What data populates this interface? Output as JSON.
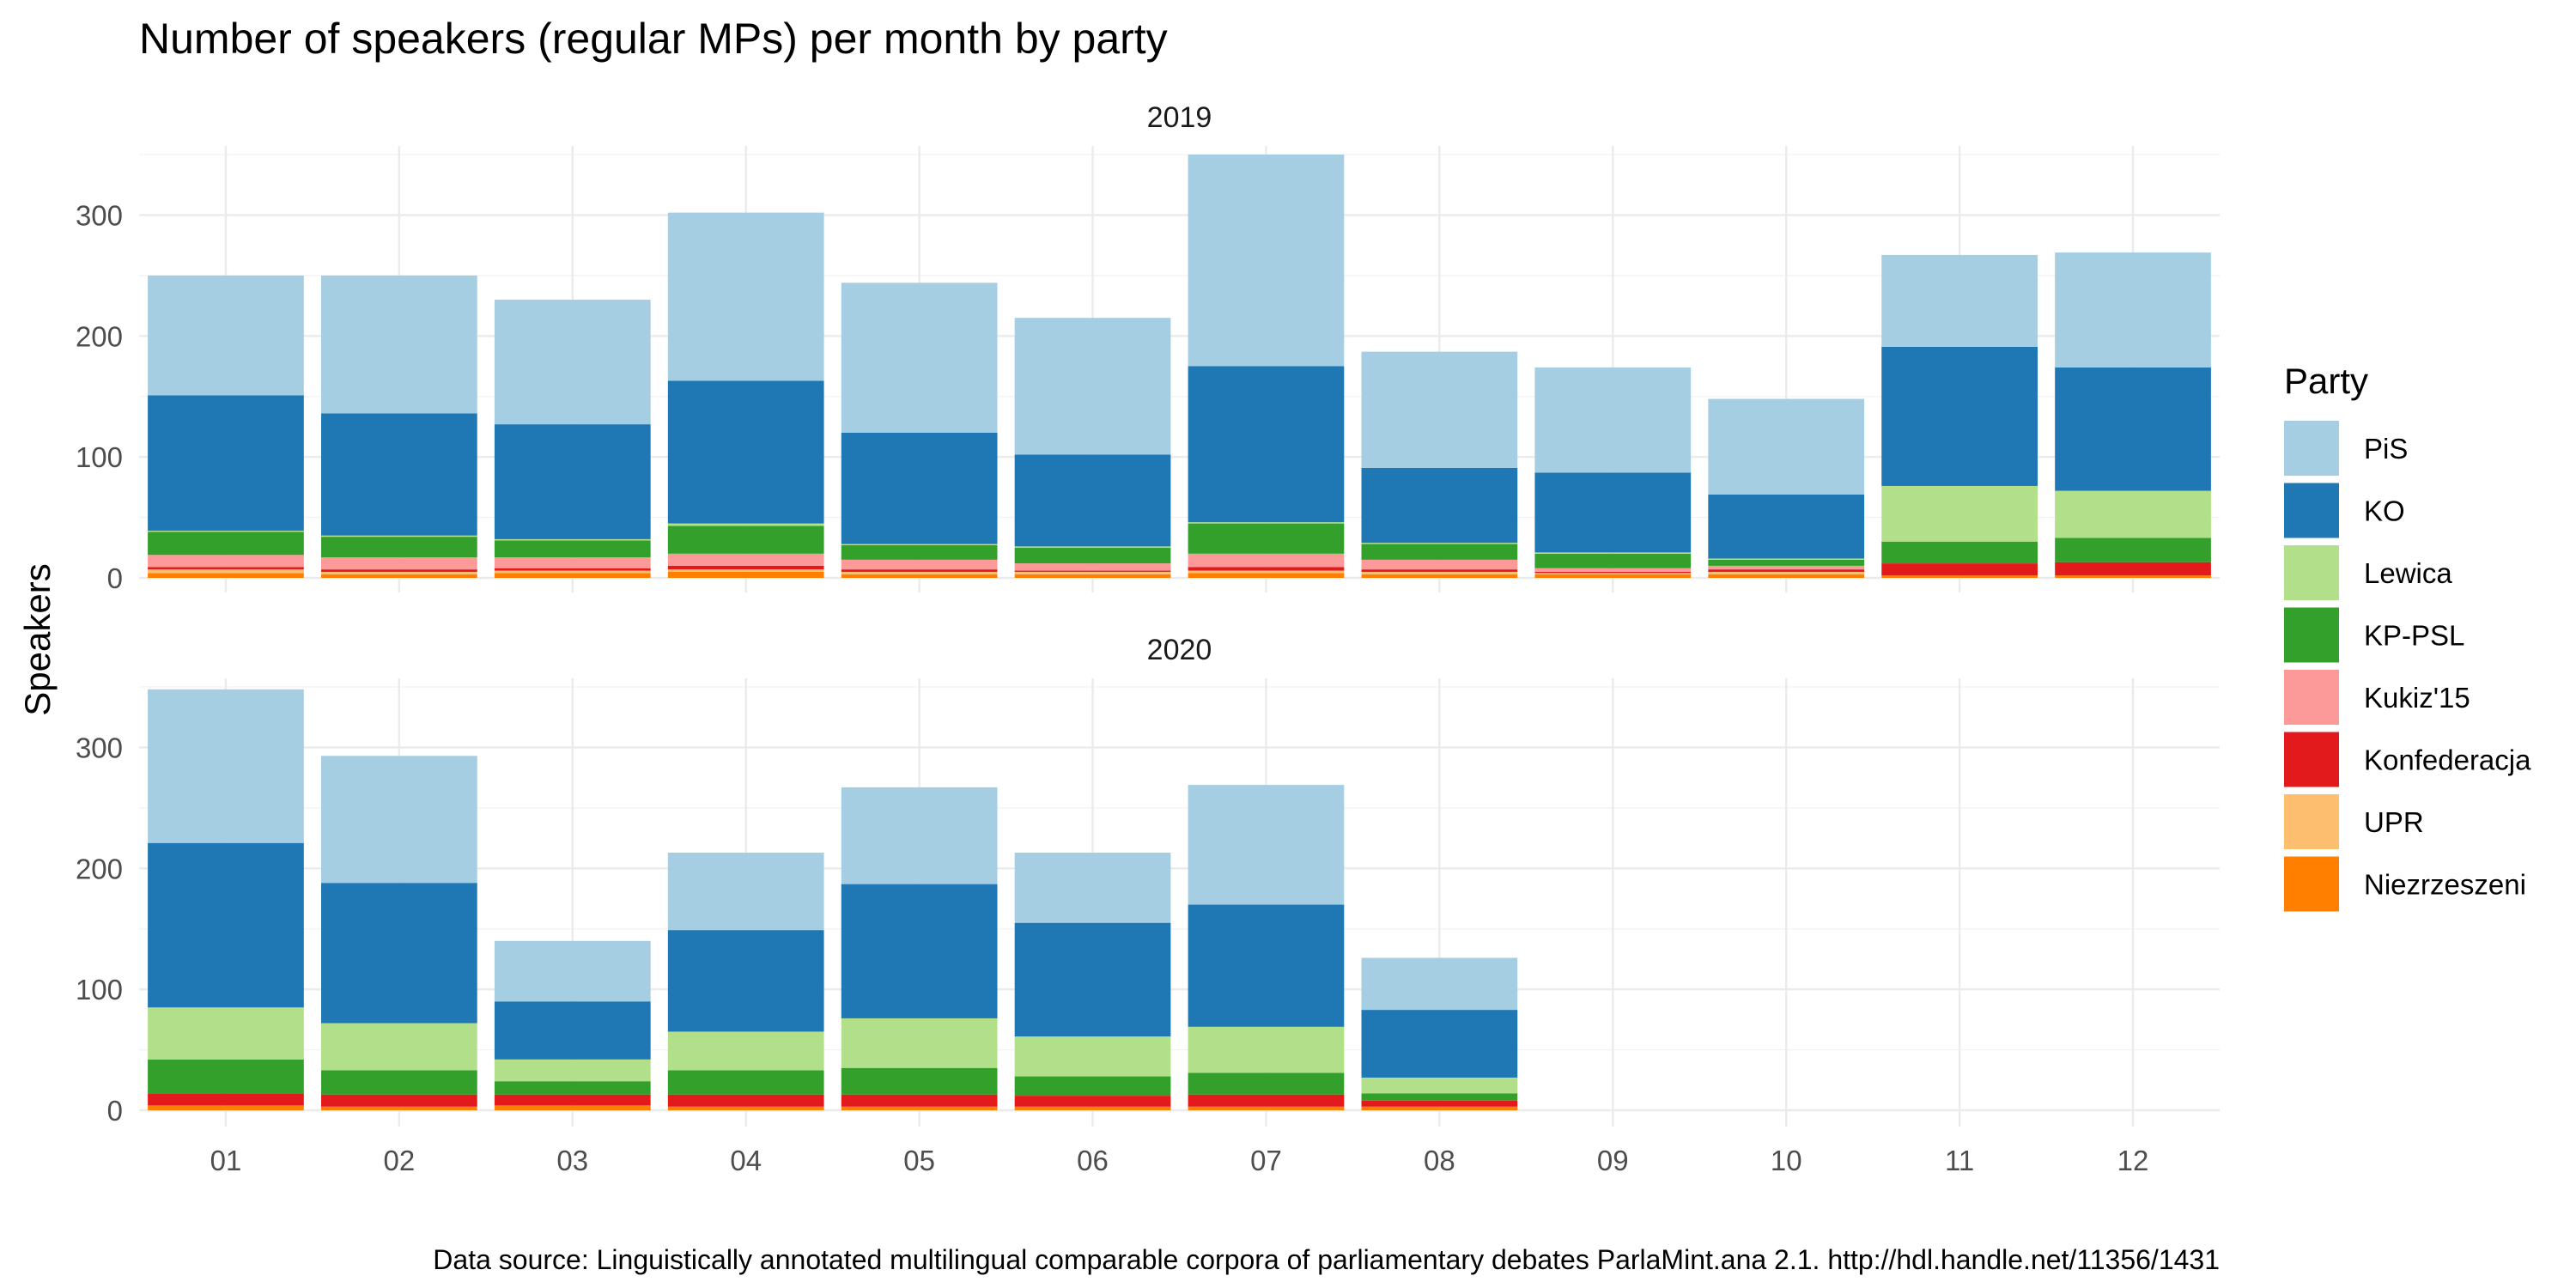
{
  "chart_data": {
    "type": "bar",
    "stacked": true,
    "title": "Number of speakers (regular MPs) per month by party",
    "ylabel": "Speakers",
    "xlabel": "",
    "caption": "Data source: Linguistically annotated multilingual comparable corpora of parliamentary debates ParlaMint.ana 2.1. http://hdl.handle.net/11356/1431",
    "categories": [
      "01",
      "02",
      "03",
      "04",
      "05",
      "06",
      "07",
      "08",
      "09",
      "10",
      "11",
      "12"
    ],
    "ylim": [
      0,
      350
    ],
    "yticks": [
      0,
      100,
      200,
      300
    ],
    "grid": true,
    "legend": {
      "title": "Party",
      "position": "right",
      "entries": [
        "PiS",
        "KO",
        "Lewica",
        "KP-PSL",
        "Kukiz'15",
        "Konfederacja",
        "UPR",
        "Niezrzeszeni"
      ]
    },
    "colors": {
      "PiS": "#a6cee3",
      "KO": "#1f78b4",
      "Lewica": "#b2df8a",
      "KP-PSL": "#33a02c",
      "Kukiz'15": "#fb9a99",
      "Konfederacja": "#e31a1c",
      "UPR": "#fdbf6f",
      "Niezrzeszeni": "#ff7f00"
    },
    "facets": [
      {
        "label": "2019",
        "series": [
          {
            "name": "Niezrzeszeni",
            "values": [
              4,
              3,
              4,
              5,
              3,
              3,
              4,
              3,
              3,
              3,
              2,
              2
            ]
          },
          {
            "name": "UPR",
            "values": [
              3,
              2,
              2,
              2,
              2,
              2,
              2,
              2,
              1,
              2,
              0,
              0
            ]
          },
          {
            "name": "Konfederacja",
            "values": [
              2,
              2,
              2,
              3,
              2,
              1,
              3,
              2,
              1,
              2,
              10,
              11
            ]
          },
          {
            "name": "Kukiz'15",
            "values": [
              10,
              10,
              9,
              10,
              8,
              6,
              11,
              8,
              3,
              3,
              0,
              0
            ]
          },
          {
            "name": "KP-PSL",
            "values": [
              19,
              17,
              14,
              23,
              12,
              13,
              25,
              13,
              12,
              5,
              18,
              20
            ]
          },
          {
            "name": "Lewica",
            "values": [
              1,
              1,
              1,
              2,
              1,
              1,
              1,
              1,
              1,
              1,
              46,
              39
            ]
          },
          {
            "name": "KO",
            "values": [
              112,
              101,
              95,
              118,
              92,
              76,
              129,
              62,
              66,
              53,
              115,
              102
            ]
          },
          {
            "name": "PiS",
            "values": [
              99,
              114,
              103,
              139,
              124,
              113,
              175,
              96,
              87,
              79,
              76,
              95
            ]
          }
        ]
      },
      {
        "label": "2020",
        "series": [
          {
            "name": "Niezrzeszeni",
            "values": [
              4,
              3,
              4,
              3,
              3,
              3,
              3,
              3,
              0,
              0,
              0,
              0
            ]
          },
          {
            "name": "UPR",
            "values": [
              0,
              0,
              0,
              0,
              0,
              0,
              0,
              0,
              0,
              0,
              0,
              0
            ]
          },
          {
            "name": "Konfederacja",
            "values": [
              10,
              10,
              9,
              10,
              10,
              9,
              10,
              5,
              0,
              0,
              0,
              0
            ]
          },
          {
            "name": "Kukiz'15",
            "values": [
              0,
              0,
              0,
              0,
              0,
              0,
              0,
              0,
              0,
              0,
              0,
              0
            ]
          },
          {
            "name": "KP-PSL",
            "values": [
              28,
              20,
              11,
              20,
              22,
              16,
              18,
              6,
              0,
              0,
              0,
              0
            ]
          },
          {
            "name": "Lewica",
            "values": [
              43,
              39,
              18,
              32,
              41,
              33,
              38,
              13,
              0,
              0,
              0,
              0
            ]
          },
          {
            "name": "KO",
            "values": [
              136,
              116,
              48,
              84,
              111,
              94,
              101,
              56,
              0,
              0,
              0,
              0
            ]
          },
          {
            "name": "PiS",
            "values": [
              127,
              105,
              50,
              64,
              80,
              58,
              99,
              43,
              0,
              0,
              0,
              0
            ]
          }
        ]
      }
    ]
  }
}
